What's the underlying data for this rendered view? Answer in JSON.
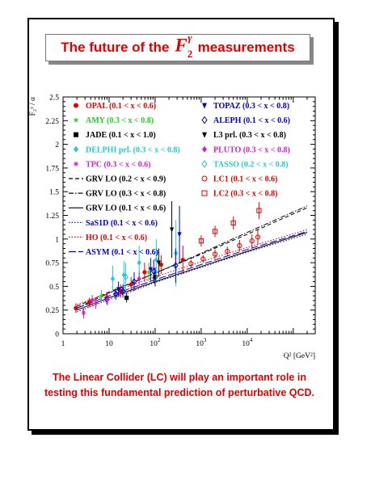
{
  "title_prefix": "The future of the",
  "title_symbol": {
    "base": "F",
    "subscript": "2",
    "superscript": "γ"
  },
  "title_suffix": "measurements",
  "caption": "The Linear Collider (LC) will play an important role in testing this fundamental prediction of perturbative QCD.",
  "chart_data": {
    "type": "scatter",
    "title": "",
    "xlabel": "Q² [GeV²]",
    "ylabel": "F₂ᵞ / α",
    "xscale": "log",
    "xlim": [
      1,
      300000
    ],
    "ylim": [
      0,
      2.5
    ],
    "yticks": [
      0,
      0.25,
      0.5,
      0.75,
      1,
      1.25,
      1.5,
      1.75,
      2,
      2.25,
      2.5
    ],
    "yticklabels": [
      "0",
      "0.25",
      "0.5",
      "0.75",
      "1",
      "1.25",
      "1.5",
      "1.75",
      "2",
      "2.25",
      "2.5"
    ],
    "xticks": [
      1,
      10,
      100,
      1000,
      10000
    ],
    "xticklabels": [
      {
        "base": "1",
        "exp": ""
      },
      {
        "base": "10",
        "exp": ""
      },
      {
        "base": "10",
        "exp": "2"
      },
      {
        "base": "10",
        "exp": "3"
      },
      {
        "base": "10",
        "exp": "4"
      }
    ],
    "legend_left": [
      {
        "label": "OPAL (0.1 < x < 0.6)",
        "color": "#e00000",
        "marker": "circle-filled"
      },
      {
        "label": "AMY (0.3 < x < 0.8)",
        "color": "#22cc22",
        "marker": "star"
      },
      {
        "label": "JADE (0.1 < x < 1.0)",
        "color": "#000000",
        "marker": "square-filled"
      },
      {
        "label": "DELPHI prl. (0.3 < x < 0.8)",
        "color": "#22cccc",
        "marker": "diamond-filled"
      },
      {
        "label": "TPC (0.3 < x < 0.6)",
        "color": "#cc22cc",
        "marker": "asterisk"
      },
      {
        "label": "GRV LO (0.2 < x < 0.9)",
        "color": "#000000",
        "marker": "line-dashed"
      },
      {
        "label": "GRV LO (0.3 < x < 0.8)",
        "color": "#000000",
        "marker": "line-dashdot"
      },
      {
        "label": "GRV LO (0.1 < x < 0.6)",
        "color": "#000000",
        "marker": "line-solid"
      },
      {
        "label": "SaS1D (0.1 < x < 0.6)",
        "color": "#0000cc",
        "marker": "line-dotted"
      },
      {
        "label": "HO (0.1 < x < 0.6)",
        "color": "#e00000",
        "marker": "line-dotted"
      },
      {
        "label": "ASYM (0.1 < x < 0.6)",
        "color": "#0000cc",
        "marker": "line-longdash"
      }
    ],
    "legend_right": [
      {
        "label": "TOPAZ (0.3 < x < 0.8)",
        "color": "#0000cc",
        "marker": "triangle-down-filled"
      },
      {
        "label": "ALEPH (0.1 < x < 0.6)",
        "color": "#0000cc",
        "marker": "diamond-open"
      },
      {
        "label": "L3 prl. (0.3 < x < 0.8)",
        "color": "#000000",
        "marker": "triangle-down-filled"
      },
      {
        "label": "PLUTO (0.3 < x < 0.8)",
        "color": "#cc22cc",
        "marker": "diamond-filled"
      },
      {
        "label": "TASSO (0.2 < x < 0.8)",
        "color": "#22cccc",
        "marker": "diamond-open"
      },
      {
        "label": "LC1 (0.1 < x < 0.6)",
        "color": "#e00000",
        "marker": "circle-open"
      },
      {
        "label": "LC2 (0.3 < x < 0.8)",
        "color": "#e00000",
        "marker": "square-open"
      }
    ],
    "curves": [
      {
        "name": "GRV LO (0.2 < x < 0.9)",
        "color": "#000000",
        "style": "dashed",
        "x": [
          2,
          10,
          100,
          1000,
          10000,
          200000
        ],
        "y": [
          0.29,
          0.44,
          0.64,
          0.84,
          1.05,
          1.33
        ]
      },
      {
        "name": "GRV LO (0.3 < x < 0.8)",
        "color": "#000000",
        "style": "dashdot",
        "x": [
          2,
          10,
          100,
          1000,
          10000,
          200000
        ],
        "y": [
          0.27,
          0.43,
          0.64,
          0.85,
          1.07,
          1.35
        ]
      },
      {
        "name": "GRV LO (0.1 < x < 0.6)",
        "color": "#000000",
        "style": "solid",
        "x": [
          2,
          10,
          100,
          1000,
          10000,
          200000
        ],
        "y": [
          0.25,
          0.38,
          0.55,
          0.71,
          0.87,
          1.07
        ]
      },
      {
        "name": "SaS1D (0.1 < x < 0.6)",
        "color": "#0000cc",
        "style": "dotted",
        "x": [
          2,
          10,
          100,
          1000,
          10000,
          200000
        ],
        "y": [
          0.23,
          0.36,
          0.54,
          0.7,
          0.86,
          1.05
        ]
      },
      {
        "name": "HO (0.1 < x < 0.6)",
        "color": "#e00000",
        "style": "dotted",
        "x": [
          2,
          10,
          100,
          1000,
          10000,
          200000
        ],
        "y": [
          0.31,
          0.43,
          0.6,
          0.76,
          0.91,
          1.1
        ]
      },
      {
        "name": "ASYM (0.1 < x < 0.6)",
        "color": "#0000cc",
        "style": "longdash",
        "x": [
          2,
          10,
          100,
          1000,
          10000,
          200000
        ],
        "y": [
          0.27,
          0.4,
          0.57,
          0.73,
          0.89,
          1.08
        ]
      }
    ],
    "points": [
      {
        "series": "OPAL (0.1 < x < 0.6)",
        "marker": "circle-filled",
        "color": "#e00000",
        "x": [
          1.9,
          3.7,
          8.9,
          17.8,
          30,
          59,
          135,
          400
        ],
        "y": [
          0.27,
          0.33,
          0.38,
          0.45,
          0.52,
          0.65,
          0.73,
          0.78
        ],
        "err": [
          0.05,
          0.05,
          0.06,
          0.07,
          0.08,
          0.1,
          0.1,
          0.15
        ]
      },
      {
        "series": "AMY (0.3 < x < 0.8)",
        "marker": "star",
        "color": "#22cc22",
        "x": [
          6.8,
          73
        ],
        "y": [
          0.4,
          0.65
        ],
        "err": [
          0.06,
          0.1
        ]
      },
      {
        "series": "JADE (0.1 < x < 1.0)",
        "marker": "square-filled",
        "color": "#000000",
        "x": [
          24,
          100
        ],
        "y": [
          0.38,
          0.6
        ],
        "err": [
          0.05,
          0.1
        ]
      },
      {
        "series": "DELPHI prl. (0.3 < x < 0.8)",
        "marker": "diamond-filled",
        "color": "#22cccc",
        "x": [
          12,
          21,
          45,
          106,
          283
        ],
        "y": [
          0.58,
          0.62,
          0.75,
          0.78,
          0.85
        ],
        "err": [
          0.14,
          0.15,
          0.18,
          0.22,
          0.35
        ]
      },
      {
        "series": "TPC (0.3 < x < 0.6)",
        "marker": "asterisk",
        "color": "#cc22cc",
        "x": [
          2.8,
          5.1
        ],
        "y": [
          0.22,
          0.32
        ],
        "err": [
          0.06,
          0.06
        ]
      },
      {
        "series": "TOPAZ (0.3 < x < 0.8)",
        "marker": "triangle-down-filled",
        "color": "#0000cc",
        "x": [
          16,
          80,
          338
        ],
        "y": [
          0.47,
          0.68,
          1.05
        ],
        "err": [
          0.08,
          0.12,
          0.3
        ]
      },
      {
        "series": "ALEPH (0.1 < x < 0.6)",
        "marker": "diamond-open",
        "color": "#0000cc",
        "x": [
          9,
          14,
          20,
          35,
          93,
          279
        ],
        "y": [
          0.36,
          0.42,
          0.45,
          0.55,
          0.66,
          0.72
        ],
        "err": [
          0.05,
          0.06,
          0.07,
          0.1,
          0.12,
          0.18
        ]
      },
      {
        "series": "L3 prl. (0.3 < x < 0.8)",
        "marker": "triangle-down-filled",
        "color": "#000000",
        "x": [
          120,
          230
        ],
        "y": [
          0.75,
          1.1
        ],
        "err": [
          0.15,
          0.3
        ]
      },
      {
        "series": "PLUTO (0.3 < x < 0.8)",
        "marker": "diamond-filled",
        "color": "#cc22cc",
        "x": [
          4.3,
          9.2,
          45
        ],
        "y": [
          0.35,
          0.36,
          0.58
        ],
        "err": [
          0.06,
          0.06,
          0.08
        ]
      },
      {
        "series": "TASSO (0.2 < x < 0.8)",
        "marker": "diamond-open",
        "color": "#22cccc",
        "x": [
          23
        ],
        "y": [
          0.6
        ],
        "err": [
          0.15
        ]
      },
      {
        "series": "LC1 (0.1 < x < 0.6)",
        "marker": "circle-open",
        "color": "#e00000",
        "x": [
          600,
          1100,
          2000,
          3700,
          6800,
          12700,
          17000
        ],
        "y": [
          0.74,
          0.79,
          0.84,
          0.87,
          0.93,
          0.98,
          1.02
        ],
        "err": [
          0.04,
          0.04,
          0.05,
          0.05,
          0.06,
          0.07,
          0.08
        ]
      },
      {
        "series": "LC2 (0.3 < x < 0.8)",
        "marker": "square-open",
        "color": "#e00000",
        "x": [
          1000,
          2000,
          5000,
          18000
        ],
        "y": [
          0.98,
          1.08,
          1.17,
          1.3
        ],
        "err": [
          0.06,
          0.06,
          0.07,
          0.09
        ]
      }
    ]
  }
}
